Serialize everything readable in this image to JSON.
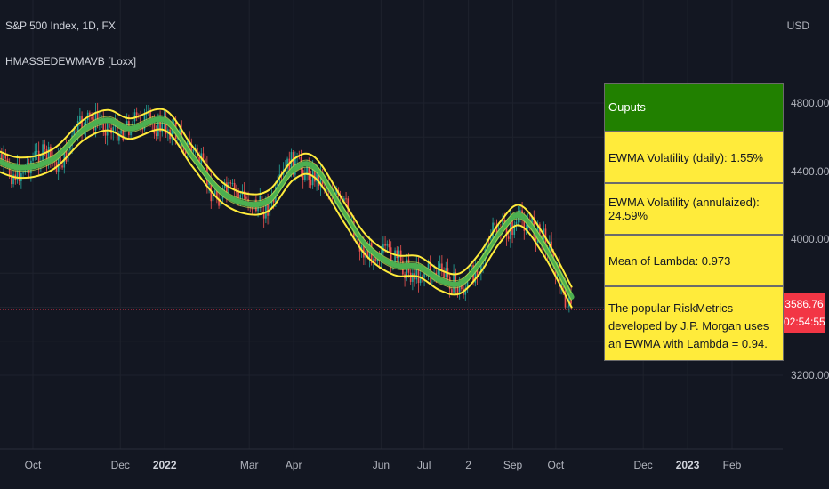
{
  "header": {
    "title": "S&P 500 Index, 1D, FX",
    "indicator": "HMASSEDEWMAVB [Loxx]",
    "currency": "USD"
  },
  "price": {
    "last": "3586.76",
    "countdown": "02:54:55"
  },
  "panel": {
    "title": "Ouputs",
    "rows": [
      "EWMA Volatility (daily): 1.55%",
      "EWMA Volatility (annulaized): 24.59%",
      "Mean of Lambda: 0.973",
      "The popular RiskMetrics developed by J.P. Morgan uses an EWMA with Lambda = 0.94."
    ]
  },
  "colors": {
    "background": "#131722",
    "up_candle": "#26a69a",
    "down_candle": "#ef5350",
    "band_outer": "#ffeb3b",
    "band_inner": "#4caf50",
    "panel_header": "#218000",
    "panel_rows": "#ffeb3b",
    "price_label": "#f23645"
  },
  "chart_data": {
    "type": "line",
    "title": "S&P 500 Index, 1D, FX",
    "y_ticks": [
      "4800.00",
      "4400.00",
      "4000.00",
      "3200.00"
    ],
    "y_tick_values": [
      4800,
      4400,
      4000,
      3200
    ],
    "x_ticks": [
      "Oct",
      "Dec",
      "2022",
      "Mar",
      "Apr",
      "Jun",
      "Jul",
      "2",
      "Sep",
      "Oct",
      "Dec",
      "2023",
      "Feb"
    ],
    "x_tick_dates": [
      "2021-10-01",
      "2021-12-01",
      "2022-01-01",
      "2022-03-01",
      "2022-04-01",
      "2022-06-01",
      "2022-07-01",
      "2022-08-01",
      "2022-09-01",
      "2022-10-01",
      "2022-12-01",
      "2023-01-01",
      "2023-02-01"
    ],
    "last_price": 3586.76,
    "grid": true,
    "series": [
      {
        "name": "HMASSEDEWMAVB [Loxx]",
        "x": [
          "2021-09-01",
          "2021-09-22",
          "2021-10-15",
          "2021-11-05",
          "2021-11-22",
          "2021-12-08",
          "2022-01-01",
          "2022-01-20",
          "2022-02-08",
          "2022-02-26",
          "2022-03-15",
          "2022-04-01",
          "2022-04-16",
          "2022-05-06",
          "2022-05-22",
          "2022-06-10",
          "2022-06-27",
          "2022-07-12",
          "2022-07-26",
          "2022-08-09",
          "2022-08-23",
          "2022-09-06",
          "2022-09-23",
          "2022-10-12"
        ],
        "values": [
          4480,
          4420,
          4470,
          4640,
          4700,
          4650,
          4700,
          4490,
          4290,
          4210,
          4230,
          4410,
          4420,
          4160,
          3960,
          3850,
          3840,
          3760,
          3740,
          3860,
          4040,
          4140,
          3960,
          3660
        ],
        "band": 60
      }
    ]
  }
}
